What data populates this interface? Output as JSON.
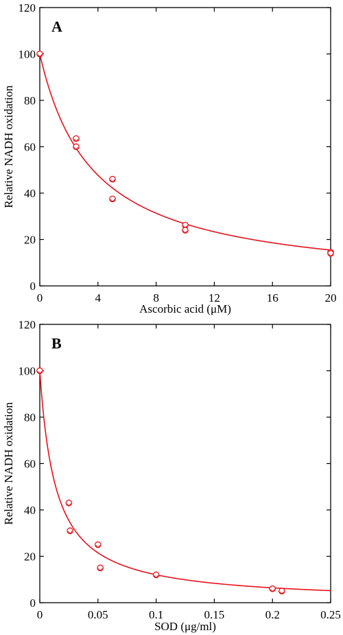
{
  "chart_data": [
    {
      "type": "scatter",
      "panel_label": "A",
      "xlabel": "Ascorbic acid (μM)",
      "ylabel": "Relative NADH oxidation",
      "xlim": [
        0,
        20
      ],
      "ylim": [
        0,
        120
      ],
      "x_ticks": [
        0,
        4,
        8,
        12,
        16,
        20
      ],
      "y_ticks": [
        0,
        20,
        40,
        60,
        80,
        100,
        120
      ],
      "grid": false,
      "colors": {
        "points": "#e8101a",
        "fit": "#e8101a",
        "axes": "#000000"
      },
      "points": {
        "x": [
          0,
          2.5,
          2.5,
          5,
          5,
          10,
          10,
          20,
          20
        ],
        "y": [
          100,
          63.5,
          60,
          46,
          37.5,
          26.2,
          24,
          14.5,
          14
        ]
      },
      "fit_curve": {
        "model": "hyperbolic decay",
        "x0_half": 3.65,
        "top": 100
      }
    },
    {
      "type": "scatter",
      "panel_label": "B",
      "xlabel": "SOD (μg/ml)",
      "ylabel": "Relative NADH oxidation",
      "xlim": [
        0,
        0.25
      ],
      "ylim": [
        0,
        120
      ],
      "x_ticks": [
        0,
        0.05,
        0.1,
        0.15,
        0.2,
        0.25
      ],
      "x_tick_labels": [
        "0",
        "0.05",
        "0.1",
        "0.15",
        "0.2",
        "0.25"
      ],
      "y_ticks": [
        0,
        20,
        40,
        60,
        80,
        100,
        120
      ],
      "grid": false,
      "colors": {
        "points": "#e8101a",
        "fit": "#e8101a",
        "axes": "#000000"
      },
      "points": {
        "x": [
          0,
          0.025,
          0.026,
          0.05,
          0.052,
          0.1,
          0.2,
          0.208
        ],
        "y": [
          100,
          43,
          31,
          25,
          15,
          12,
          6,
          5
        ]
      },
      "fit_curve": {
        "model": "hyperbolic decay",
        "x0_half": 0.0137,
        "top": 100
      }
    }
  ]
}
